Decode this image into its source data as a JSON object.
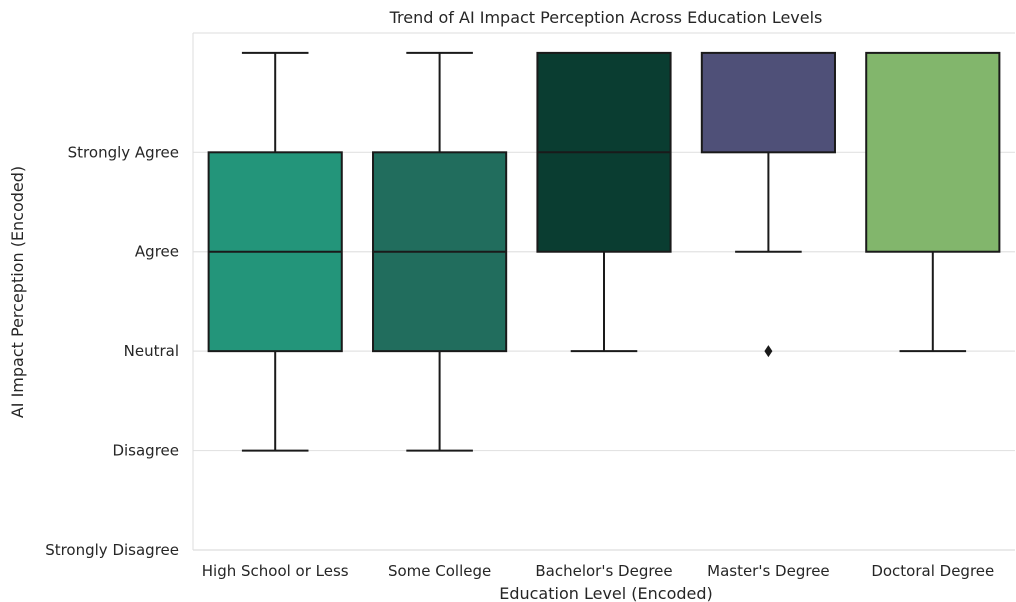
{
  "chart_data": {
    "type": "box",
    "title": "Trend of AI Impact Perception Across Education Levels",
    "xlabel": "Education Level (Encoded)",
    "ylabel": "AI Impact Perception (Encoded)",
    "ylim": [
      0.0,
      5.2
    ],
    "y_ticks": [
      {
        "value": 0,
        "label": "Strongly Disagree"
      },
      {
        "value": 1,
        "label": "Disagree"
      },
      {
        "value": 2,
        "label": "Neutral"
      },
      {
        "value": 3,
        "label": "Agree"
      },
      {
        "value": 4,
        "label": "Strongly Agree"
      }
    ],
    "grid": "horizontal",
    "categories": [
      "High School or Less",
      "Some College",
      "Bachelor's Degree",
      "Master's Degree",
      "Doctoral Degree"
    ],
    "boxes": [
      {
        "category": "High School or Less",
        "whisker_low": 1,
        "q1": 2,
        "median": 3,
        "q3": 4,
        "whisker_high": 5,
        "outliers": [],
        "color": "#23957a"
      },
      {
        "category": "Some College",
        "whisker_low": 1,
        "q1": 2,
        "median": 3,
        "q3": 4,
        "whisker_high": 5,
        "outliers": [],
        "color": "#216d5d"
      },
      {
        "category": "Bachelor's Degree",
        "whisker_low": 2,
        "q1": 3,
        "median": 4,
        "q3": 5,
        "whisker_high": 5,
        "outliers": [],
        "color": "#0a3d31"
      },
      {
        "category": "Master's Degree",
        "whisker_low": 3,
        "q1": 4,
        "median": 5,
        "q3": 5,
        "whisker_high": 5,
        "outliers": [
          2
        ],
        "color": "#4f5078"
      },
      {
        "category": "Doctoral Degree",
        "whisker_low": 2,
        "q1": 3,
        "median": 5,
        "q3": 5,
        "whisker_high": 5,
        "outliers": [],
        "color": "#82b66c"
      }
    ]
  }
}
